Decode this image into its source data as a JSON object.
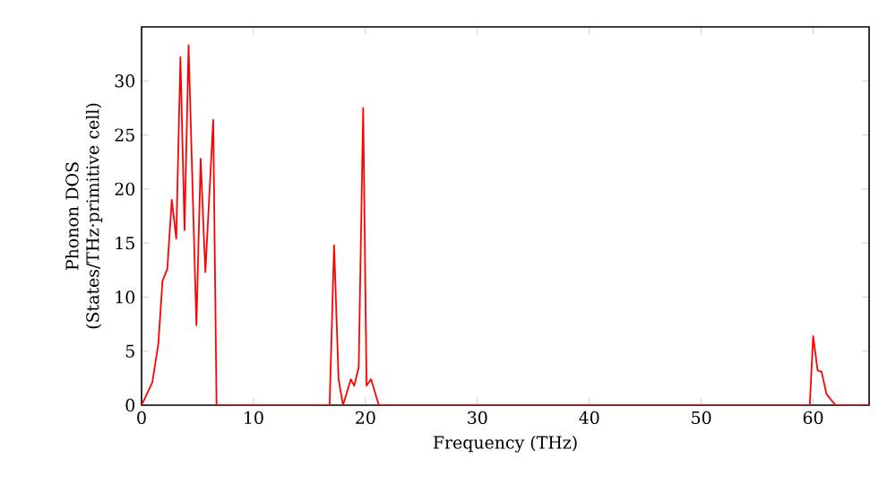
{
  "chart_data": {
    "type": "line",
    "xlabel": "Frequency (THz)",
    "ylabel": "Phonon DOS (States/THz·primitive cell)",
    "xlim": [
      0,
      65
    ],
    "ylim": [
      0,
      35
    ],
    "xticks": [
      0,
      10,
      20,
      30,
      40,
      50,
      60
    ],
    "yticks": [
      0,
      5,
      10,
      15,
      20,
      25,
      30
    ],
    "series": [
      {
        "color": "#ff0000",
        "x": [
          0,
          0.96,
          1.5,
          1.87,
          2.3,
          2.7,
          3.1,
          3.47,
          3.84,
          4.2,
          4.9,
          5.28,
          5.7,
          6.4,
          6.7,
          16.8,
          17.2,
          17.6,
          18.0,
          18.7,
          19.0,
          19.4,
          19.8,
          20.1,
          20.5,
          21.2,
          59.7,
          60.0,
          60.4,
          60.75,
          61.2,
          62.0,
          65
        ],
        "values": [
          0,
          2.1,
          5.7,
          11.5,
          12.6,
          19,
          15.4,
          32.2,
          16.2,
          33.3,
          7.4,
          22.8,
          12.3,
          26.4,
          0,
          0,
          14.8,
          2.4,
          0,
          2.4,
          1.8,
          3.5,
          27.5,
          1.8,
          2.4,
          0,
          0,
          6.4,
          3.2,
          3.1,
          1.0,
          0,
          0
        ]
      }
    ]
  }
}
